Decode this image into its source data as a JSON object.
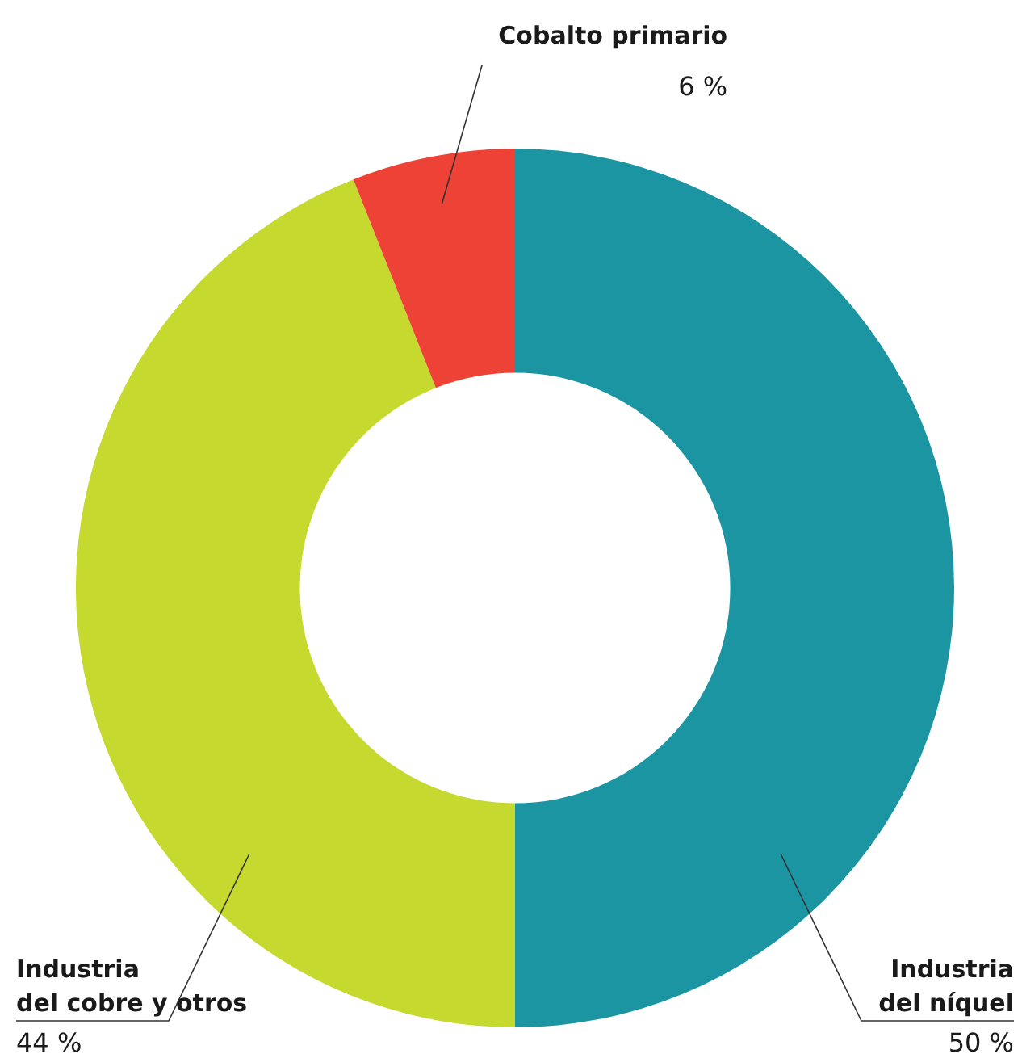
{
  "chart_data": {
    "type": "donut",
    "categories": [
      "Industria\ndel níquel",
      "Industria\ndel cobre y otros",
      "Cobalto primario"
    ],
    "values": [
      50,
      44,
      6
    ],
    "colors": [
      "#1c95a3",
      "#c5d92e",
      "#ee4237"
    ],
    "value_labels": [
      "50 %",
      "44 %",
      "6 %"
    ],
    "legend": false
  }
}
